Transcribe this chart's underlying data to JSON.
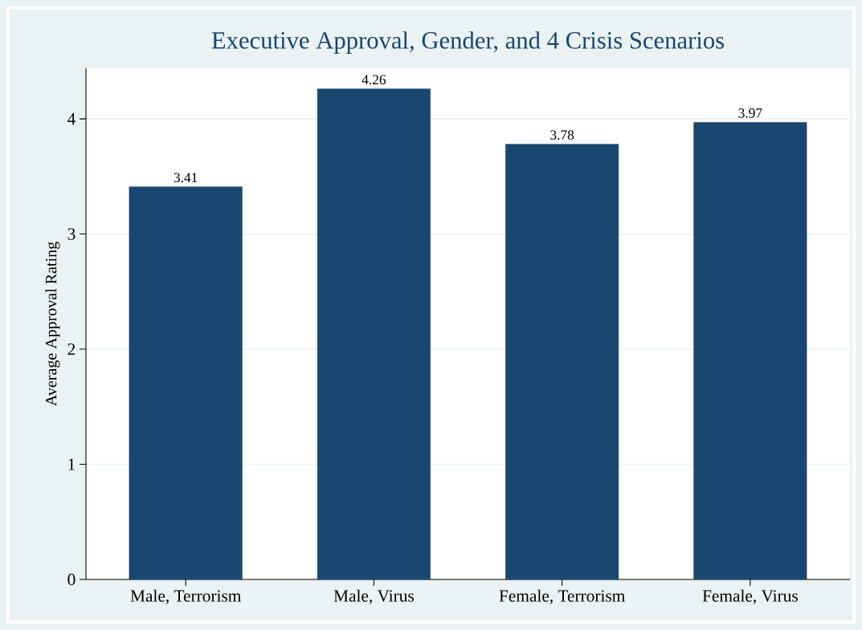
{
  "chart_data": {
    "type": "bar",
    "title": "Executive Approval, Gender, and 4 Crisis Scenarios",
    "ylabel": "Average Approval Rating",
    "categories": [
      "Male, Terrorism",
      "Male, Virus",
      "Female, Terrorism",
      "Female, Virus"
    ],
    "values": [
      3.41,
      4.26,
      3.78,
      3.97
    ],
    "color": "#1a476f",
    "ylim": [
      0,
      4.44
    ],
    "yticks": [
      0,
      1,
      2,
      3,
      4
    ],
    "grid": "y",
    "data_labels": true
  }
}
